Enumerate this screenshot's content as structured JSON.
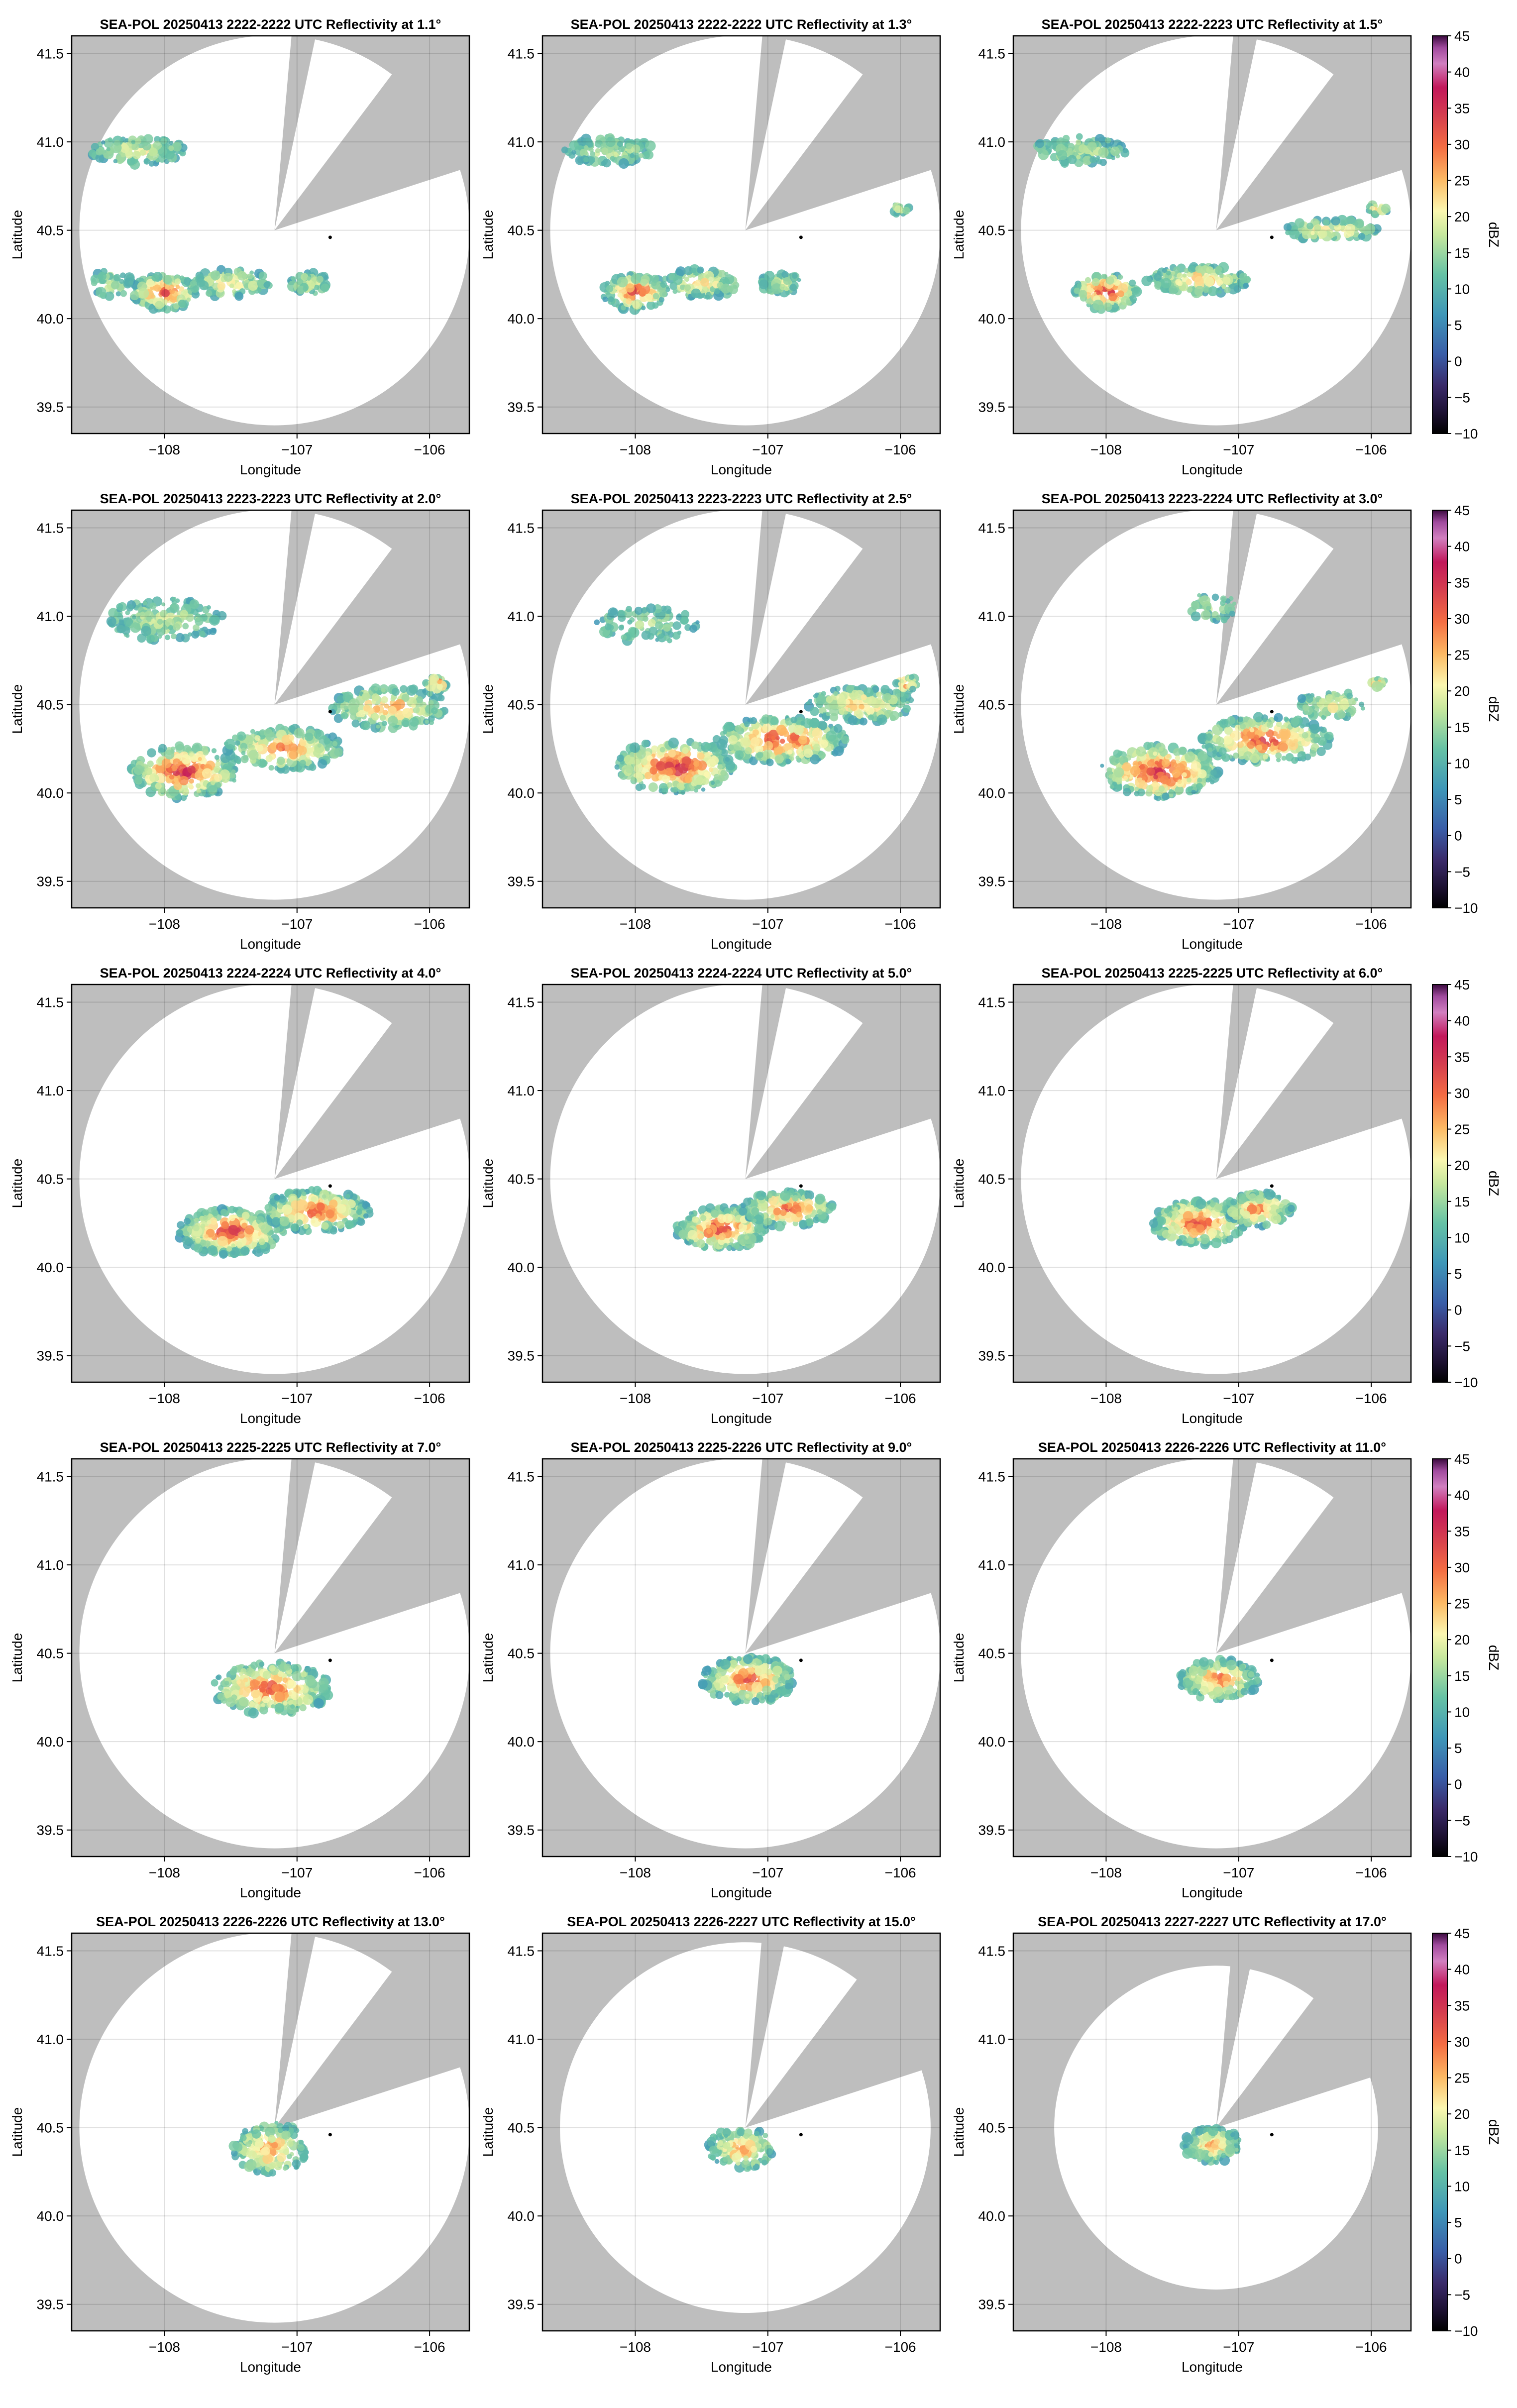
{
  "figure": {
    "colormap_name": "Spectral_r",
    "mask_color": "#bebebe",
    "radar_marker_color": "#000000"
  },
  "chart_data": [
    {
      "type": "heatmap",
      "panel": 1,
      "title": "SEA-POL 20250413 2222-2222 UTC Reflectivity at 1.1°",
      "xlabel": "Longitude",
      "ylabel": "Latitude",
      "xlim": [
        -108.7,
        -105.7
      ],
      "ylim": [
        39.35,
        41.6
      ],
      "xticks": [
        "−108",
        "−107",
        "−106"
      ],
      "yticks": [
        "39.5",
        "40.0",
        "40.5",
        "41.0",
        "41.5"
      ],
      "grid": true,
      "radar_site": [
        -106.75,
        40.46
      ],
      "range_ratio": 1.0,
      "colorbar": false
    },
    {
      "type": "heatmap",
      "panel": 2,
      "title": "SEA-POL 20250413 2222-2222 UTC Reflectivity at 1.3°",
      "xlabel": "Longitude",
      "ylabel": "Latitude",
      "xlim": [
        -108.7,
        -105.7
      ],
      "ylim": [
        39.35,
        41.6
      ],
      "xticks": [
        "−108",
        "−107",
        "−106"
      ],
      "yticks": [
        "39.5",
        "40.0",
        "40.5",
        "41.0",
        "41.5"
      ],
      "grid": true,
      "radar_site": [
        -106.75,
        40.46
      ],
      "range_ratio": 1.0,
      "colorbar": false
    },
    {
      "type": "heatmap",
      "panel": 3,
      "title": "SEA-POL 20250413 2222-2223 UTC Reflectivity at 1.5°",
      "xlabel": "Longitude",
      "ylabel": "Latitude",
      "xlim": [
        -108.7,
        -105.7
      ],
      "ylim": [
        39.35,
        41.6
      ],
      "xticks": [
        "−108",
        "−107",
        "−106"
      ],
      "yticks": [
        "39.5",
        "40.0",
        "40.5",
        "41.0",
        "41.5"
      ],
      "grid": true,
      "radar_site": [
        -106.75,
        40.46
      ],
      "range_ratio": 1.0,
      "colorbar": true,
      "colorbar_label": "dBZ",
      "colorbar_ticks": [
        "−10",
        "−5",
        "0",
        "5",
        "10",
        "15",
        "20",
        "25",
        "30",
        "35",
        "40",
        "45"
      ]
    },
    {
      "type": "heatmap",
      "panel": 4,
      "title": "SEA-POL 20250413 2223-2223 UTC Reflectivity at 2.0°",
      "xlabel": "Longitude",
      "ylabel": "Latitude",
      "xlim": [
        -108.7,
        -105.7
      ],
      "ylim": [
        39.35,
        41.6
      ],
      "xticks": [
        "−108",
        "−107",
        "−106"
      ],
      "yticks": [
        "39.5",
        "40.0",
        "40.5",
        "41.0",
        "41.5"
      ],
      "grid": true,
      "radar_site": [
        -106.75,
        40.46
      ],
      "range_ratio": 1.0,
      "colorbar": false
    },
    {
      "type": "heatmap",
      "panel": 5,
      "title": "SEA-POL 20250413 2223-2223 UTC Reflectivity at 2.5°",
      "xlabel": "Longitude",
      "ylabel": "Latitude",
      "xlim": [
        -108.7,
        -105.7
      ],
      "ylim": [
        39.35,
        41.6
      ],
      "xticks": [
        "−108",
        "−107",
        "−106"
      ],
      "yticks": [
        "39.5",
        "40.0",
        "40.5",
        "41.0",
        "41.5"
      ],
      "grid": true,
      "radar_site": [
        -106.75,
        40.46
      ],
      "range_ratio": 1.0,
      "colorbar": false
    },
    {
      "type": "heatmap",
      "panel": 6,
      "title": "SEA-POL 20250413 2223-2224 UTC Reflectivity at 3.0°",
      "xlabel": "Longitude",
      "ylabel": "Latitude",
      "xlim": [
        -108.7,
        -105.7
      ],
      "ylim": [
        39.35,
        41.6
      ],
      "xticks": [
        "−108",
        "−107",
        "−106"
      ],
      "yticks": [
        "39.5",
        "40.0",
        "40.5",
        "41.0",
        "41.5"
      ],
      "grid": true,
      "radar_site": [
        -106.75,
        40.46
      ],
      "range_ratio": 1.0,
      "colorbar": true,
      "colorbar_label": "dBZ",
      "colorbar_ticks": [
        "−10",
        "−5",
        "0",
        "5",
        "10",
        "15",
        "20",
        "25",
        "30",
        "35",
        "40",
        "45"
      ]
    },
    {
      "type": "heatmap",
      "panel": 7,
      "title": "SEA-POL 20250413 2224-2224 UTC Reflectivity at 4.0°",
      "xlabel": "Longitude",
      "ylabel": "Latitude",
      "xlim": [
        -108.7,
        -105.7
      ],
      "ylim": [
        39.35,
        41.6
      ],
      "xticks": [
        "−108",
        "−107",
        "−106"
      ],
      "yticks": [
        "39.5",
        "40.0",
        "40.5",
        "41.0",
        "41.5"
      ],
      "grid": true,
      "radar_site": [
        -106.75,
        40.46
      ],
      "range_ratio": 1.0,
      "colorbar": false
    },
    {
      "type": "heatmap",
      "panel": 8,
      "title": "SEA-POL 20250413 2224-2224 UTC Reflectivity at 5.0°",
      "xlabel": "Longitude",
      "ylabel": "Latitude",
      "xlim": [
        -108.7,
        -105.7
      ],
      "ylim": [
        39.35,
        41.6
      ],
      "xticks": [
        "−108",
        "−107",
        "−106"
      ],
      "yticks": [
        "39.5",
        "40.0",
        "40.5",
        "41.0",
        "41.5"
      ],
      "grid": true,
      "radar_site": [
        -106.75,
        40.46
      ],
      "range_ratio": 1.0,
      "colorbar": false
    },
    {
      "type": "heatmap",
      "panel": 9,
      "title": "SEA-POL 20250413 2225-2225 UTC Reflectivity at 6.0°",
      "xlabel": "Longitude",
      "ylabel": "Latitude",
      "xlim": [
        -108.7,
        -105.7
      ],
      "ylim": [
        39.35,
        41.6
      ],
      "xticks": [
        "−108",
        "−107",
        "−106"
      ],
      "yticks": [
        "39.5",
        "40.0",
        "40.5",
        "41.0",
        "41.5"
      ],
      "grid": true,
      "radar_site": [
        -106.75,
        40.46
      ],
      "range_ratio": 1.0,
      "colorbar": true,
      "colorbar_label": "dBZ",
      "colorbar_ticks": [
        "−10",
        "−5",
        "0",
        "5",
        "10",
        "15",
        "20",
        "25",
        "30",
        "35",
        "40",
        "45"
      ]
    },
    {
      "type": "heatmap",
      "panel": 10,
      "title": "SEA-POL 20250413 2225-2225 UTC Reflectivity at 7.0°",
      "xlabel": "Longitude",
      "ylabel": "Latitude",
      "xlim": [
        -108.7,
        -105.7
      ],
      "ylim": [
        39.35,
        41.6
      ],
      "xticks": [
        "−108",
        "−107",
        "−106"
      ],
      "yticks": [
        "39.5",
        "40.0",
        "40.5",
        "41.0",
        "41.5"
      ],
      "grid": true,
      "radar_site": [
        -106.75,
        40.46
      ],
      "range_ratio": 1.0,
      "colorbar": false
    },
    {
      "type": "heatmap",
      "panel": 11,
      "title": "SEA-POL 20250413 2225-2226 UTC Reflectivity at 9.0°",
      "xlabel": "Longitude",
      "ylabel": "Latitude",
      "xlim": [
        -108.7,
        -105.7
      ],
      "ylim": [
        39.35,
        41.6
      ],
      "xticks": [
        "−108",
        "−107",
        "−106"
      ],
      "yticks": [
        "39.5",
        "40.0",
        "40.5",
        "41.0",
        "41.5"
      ],
      "grid": true,
      "radar_site": [
        -106.75,
        40.46
      ],
      "range_ratio": 1.0,
      "colorbar": false
    },
    {
      "type": "heatmap",
      "panel": 12,
      "title": "SEA-POL 20250413 2226-2226 UTC Reflectivity at 11.0°",
      "xlabel": "Longitude",
      "ylabel": "Latitude",
      "xlim": [
        -108.7,
        -105.7
      ],
      "ylim": [
        39.35,
        41.6
      ],
      "xticks": [
        "−108",
        "−107",
        "−106"
      ],
      "yticks": [
        "39.5",
        "40.0",
        "40.5",
        "41.0",
        "41.5"
      ],
      "grid": true,
      "radar_site": [
        -106.75,
        40.46
      ],
      "range_ratio": 1.0,
      "colorbar": true,
      "colorbar_label": "dBZ",
      "colorbar_ticks": [
        "−10",
        "−5",
        "0",
        "5",
        "10",
        "15",
        "20",
        "25",
        "30",
        "35",
        "40",
        "45"
      ]
    },
    {
      "type": "heatmap",
      "panel": 13,
      "title": "SEA-POL 20250413 2226-2226 UTC Reflectivity at 13.0°",
      "xlabel": "Longitude",
      "ylabel": "Latitude",
      "xlim": [
        -108.7,
        -105.7
      ],
      "ylim": [
        39.35,
        41.6
      ],
      "xticks": [
        "−108",
        "−107",
        "−106"
      ],
      "yticks": [
        "39.5",
        "40.0",
        "40.5",
        "41.0",
        "41.5"
      ],
      "grid": true,
      "radar_site": [
        -106.75,
        40.46
      ],
      "range_ratio": 1.0,
      "colorbar": false
    },
    {
      "type": "heatmap",
      "panel": 14,
      "title": "SEA-POL 20250413 2226-2227 UTC Reflectivity at 15.0°",
      "xlabel": "Longitude",
      "ylabel": "Latitude",
      "xlim": [
        -108.7,
        -105.7
      ],
      "ylim": [
        39.35,
        41.6
      ],
      "xticks": [
        "−108",
        "−107",
        "−106"
      ],
      "yticks": [
        "39.5",
        "40.0",
        "40.5",
        "41.0",
        "41.5"
      ],
      "grid": true,
      "radar_site": [
        -106.75,
        40.46
      ],
      "range_ratio": 0.95,
      "colorbar": false
    },
    {
      "type": "heatmap",
      "panel": 15,
      "title": "SEA-POL 20250413 2227-2227 UTC Reflectivity at 17.0°",
      "xlabel": "Longitude",
      "ylabel": "Latitude",
      "xlim": [
        -108.7,
        -105.7
      ],
      "ylim": [
        39.35,
        41.6
      ],
      "xticks": [
        "−108",
        "−107",
        "−106"
      ],
      "yticks": [
        "39.5",
        "40.0",
        "40.5",
        "41.0",
        "41.5"
      ],
      "grid": true,
      "radar_site": [
        -106.75,
        40.46
      ],
      "range_ratio": 0.83,
      "colorbar": true,
      "colorbar_label": "dBZ",
      "colorbar_ticks": [
        "−10",
        "−5",
        "0",
        "5",
        "10",
        "15",
        "20",
        "25",
        "30",
        "35",
        "40",
        "45"
      ]
    }
  ]
}
